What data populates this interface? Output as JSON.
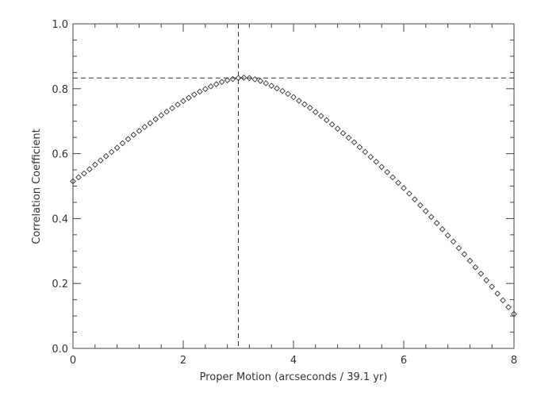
{
  "chart_data": {
    "type": "scatter",
    "xlabel": "Proper Motion (arcseconds / 39.1 yr)",
    "ylabel": "Correlation Coefficient",
    "xlim": [
      0,
      8
    ],
    "ylim": [
      0,
      1.0
    ],
    "x_ticks": [
      "0",
      "2",
      "4",
      "6",
      "8"
    ],
    "y_ticks": [
      "0.0",
      "0.2",
      "0.4",
      "0.6",
      "0.8",
      "1.0"
    ],
    "marker": "diamond",
    "peak_x": 3.0,
    "peak_y": 0.833,
    "reference_lines": {
      "vertical_x": 3.0,
      "horizontal_y": 0.833,
      "style": "dashed"
    },
    "grid": false,
    "series": [
      {
        "x": [
          0.0,
          0.1,
          0.2,
          0.3,
          0.4,
          0.5,
          0.6,
          0.7,
          0.8,
          0.9,
          1.0,
          1.1,
          1.2,
          1.3,
          1.4,
          1.5,
          1.6,
          1.7,
          1.8,
          1.9,
          2.0,
          2.1,
          2.2,
          2.3,
          2.4,
          2.5,
          2.6,
          2.7,
          2.8,
          2.9,
          3.0,
          3.1,
          3.2,
          3.3,
          3.4,
          3.5,
          3.6,
          3.7,
          3.8,
          3.9,
          4.0,
          4.1,
          4.2,
          4.3,
          4.4,
          4.5,
          4.6,
          4.7,
          4.8,
          4.9,
          5.0,
          5.1,
          5.2,
          5.3,
          5.4,
          5.5,
          5.6,
          5.7,
          5.8,
          5.9,
          6.0,
          6.1,
          6.2,
          6.3,
          6.4,
          6.5,
          6.6,
          6.7,
          6.8,
          6.9,
          7.0,
          7.1,
          7.2,
          7.3,
          7.4,
          7.5,
          7.6,
          7.7,
          7.8,
          7.9,
          8.0
        ],
        "values": [
          0.515,
          0.527,
          0.539,
          0.552,
          0.566,
          0.579,
          0.592,
          0.605,
          0.618,
          0.632,
          0.645,
          0.658,
          0.67,
          0.682,
          0.694,
          0.706,
          0.718,
          0.729,
          0.74,
          0.751,
          0.762,
          0.772,
          0.782,
          0.791,
          0.799,
          0.807,
          0.814,
          0.821,
          0.826,
          0.83,
          0.833,
          0.834,
          0.833,
          0.829,
          0.824,
          0.817,
          0.809,
          0.801,
          0.793,
          0.784,
          0.774,
          0.763,
          0.752,
          0.741,
          0.728,
          0.716,
          0.703,
          0.69,
          0.677,
          0.663,
          0.649,
          0.635,
          0.62,
          0.605,
          0.59,
          0.575,
          0.559,
          0.543,
          0.527,
          0.51,
          0.494,
          0.477,
          0.459,
          0.441,
          0.423,
          0.405,
          0.386,
          0.367,
          0.348,
          0.329,
          0.309,
          0.29,
          0.27,
          0.25,
          0.23,
          0.21,
          0.19,
          0.169,
          0.148,
          0.127,
          0.106
        ]
      }
    ]
  }
}
